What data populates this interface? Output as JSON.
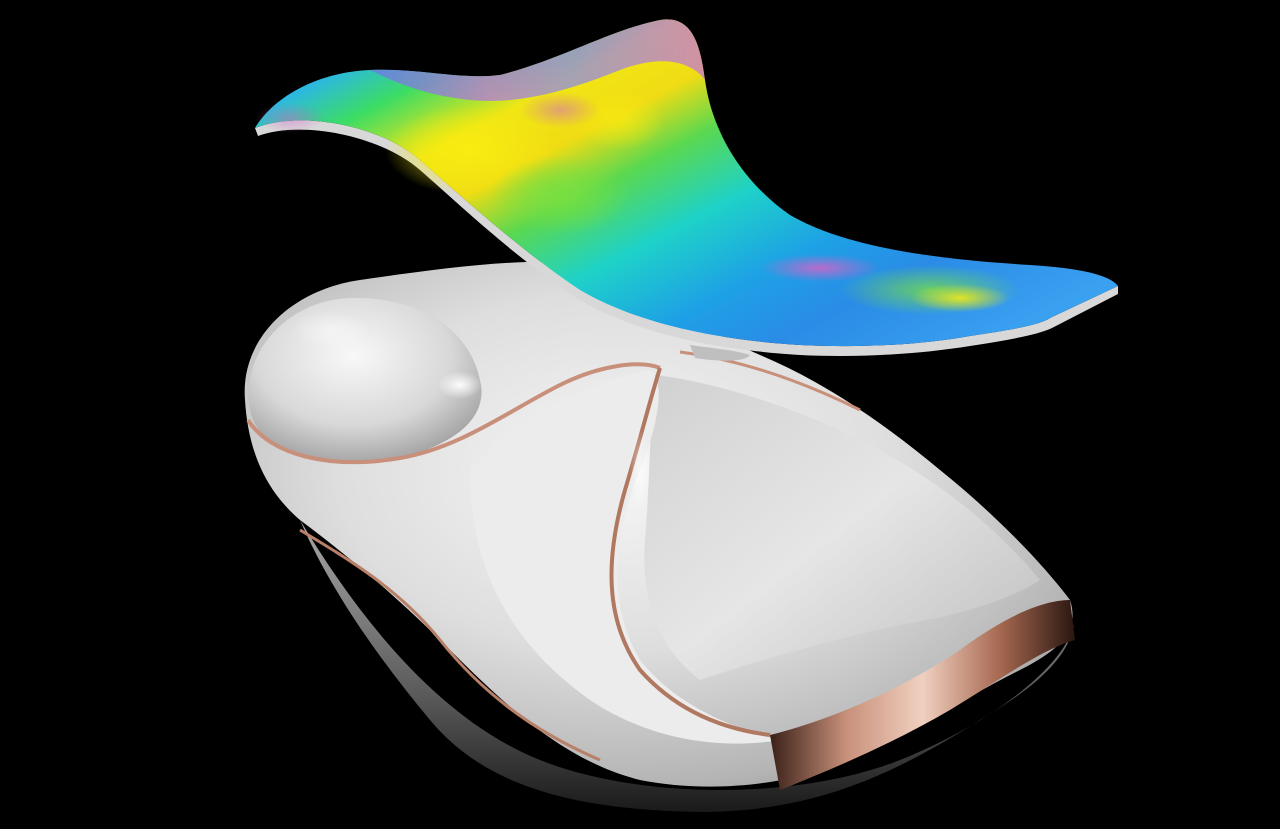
{
  "scene": {
    "background_color": "#000000",
    "objects": [
      {
        "name": "analysis-surface",
        "kind": "curved sheet with color gradient map"
      },
      {
        "name": "white-sculpture",
        "kind": "white glossy organic solid with copper trim"
      }
    ],
    "colors": {
      "gradient_blue": "#1ea0e6",
      "gradient_cyan": "#1ed2c8",
      "gradient_green": "#3cdc50",
      "gradient_yellow": "#f0e614",
      "gradient_magenta": "#c864d2",
      "sculpture_white": "#e8e8e8",
      "sculpture_shadow": "#8e8e8e",
      "trim_copper": "#c8907a",
      "sheet_edge": "#d8d8d8"
    }
  }
}
